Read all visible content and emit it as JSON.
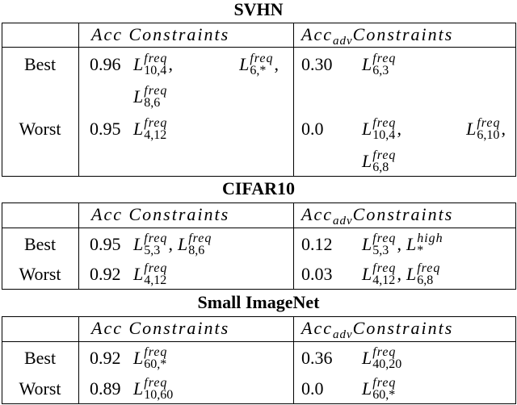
{
  "sections": [
    {
      "title": "SVHN",
      "header": {
        "acc": "Acc Constraints",
        "adv": {
          "base": "Acc",
          "sub": "adv",
          "rest": "Constraints"
        }
      },
      "rows": [
        {
          "label": "Best",
          "acc": {
            "value": "0.96",
            "constraints": [
              [
                {
                  "sym": "L",
                  "sup": "freq",
                  "sub": "10,4",
                  "sep": ","
                },
                {
                  "sym": "L",
                  "sup": "freq",
                  "sub": "6,*",
                  "sep": ","
                }
              ],
              [
                {
                  "sym": "L",
                  "sup": "freq",
                  "sub": "8,6"
                }
              ]
            ]
          },
          "adv": {
            "value": "0.30",
            "constraints": [
              [
                {
                  "sym": "L",
                  "sup": "freq",
                  "sub": "6,3"
                }
              ]
            ]
          }
        },
        {
          "label": "Worst",
          "acc": {
            "value": "0.95",
            "constraints": [
              [
                {
                  "sym": "L",
                  "sup": "freq",
                  "sub": "4,12"
                }
              ]
            ]
          },
          "adv": {
            "value": "0.0",
            "constraints": [
              [
                {
                  "sym": "L",
                  "sup": "freq",
                  "sub": "10,4",
                  "sep": ","
                },
                {
                  "sym": "L",
                  "sup": "freq",
                  "sub": "6,10",
                  "sep": ","
                }
              ],
              [
                {
                  "sym": "L",
                  "sup": "freq",
                  "sub": "6,8"
                }
              ]
            ]
          }
        }
      ]
    },
    {
      "title": "CIFAR10",
      "header": {
        "acc": "Acc Constraints",
        "adv": {
          "base": "Acc",
          "sub": "adv",
          "rest": "Constraints"
        }
      },
      "rows": [
        {
          "label": "Best",
          "acc": {
            "value": "0.95",
            "constraints": [
              [
                {
                  "sym": "L",
                  "sup": "freq",
                  "sub": "5,3",
                  "sep": ","
                },
                {
                  "sym": "L",
                  "sup": "freq",
                  "sub": "8,6"
                }
              ]
            ]
          },
          "adv": {
            "value": "0.12",
            "constraints": [
              [
                {
                  "sym": "L",
                  "sup": "freq",
                  "sub": "5,3",
                  "sep": ","
                },
                {
                  "sym": "L",
                  "sup": "high",
                  "sub": "*"
                }
              ]
            ]
          }
        },
        {
          "label": "Worst",
          "acc": {
            "value": "0.92",
            "constraints": [
              [
                {
                  "sym": "L",
                  "sup": "freq",
                  "sub": "4,12"
                }
              ]
            ]
          },
          "adv": {
            "value": "0.03",
            "constraints": [
              [
                {
                  "sym": "L",
                  "sup": "freq",
                  "sub": "4,12",
                  "sep": ","
                },
                {
                  "sym": "L",
                  "sup": "freq",
                  "sub": "6,8"
                }
              ]
            ]
          }
        }
      ]
    },
    {
      "title": "Small ImageNet",
      "header": {
        "acc": "Acc Constraints",
        "adv": {
          "base": "Acc",
          "sub": "adv",
          "rest": "Constraints"
        }
      },
      "rows": [
        {
          "label": "Best",
          "acc": {
            "value": "0.92",
            "constraints": [
              [
                {
                  "sym": "L",
                  "sup": "freq",
                  "sub": "60,*"
                }
              ]
            ]
          },
          "adv": {
            "value": "0.36",
            "constraints": [
              [
                {
                  "sym": "L",
                  "sup": "freq",
                  "sub": "40,20"
                }
              ]
            ]
          }
        },
        {
          "label": "Worst",
          "acc": {
            "value": "0.89",
            "constraints": [
              [
                {
                  "sym": "L",
                  "sup": "freq",
                  "sub": "10,60"
                }
              ]
            ]
          },
          "adv": {
            "value": "0.0",
            "constraints": [
              [
                {
                  "sym": "L",
                  "sup": "freq",
                  "sub": "60,*"
                }
              ]
            ]
          }
        }
      ]
    }
  ]
}
